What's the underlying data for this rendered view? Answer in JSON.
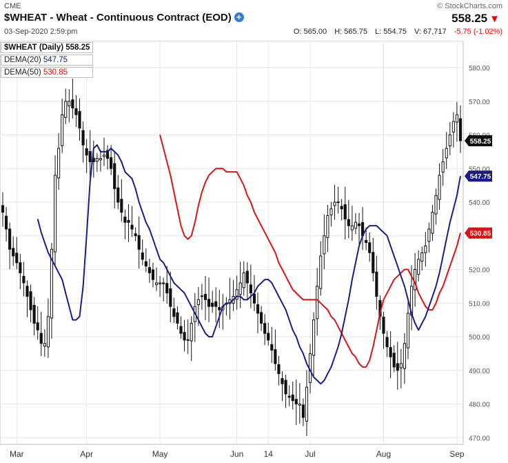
{
  "header": {
    "exchange": "CME",
    "title": "$WHEAT - Wheat - Continuous Contract (EOD)",
    "datetime": "03-Sep-2020 2:59:pm",
    "brand": "© StockCharts.com",
    "last_price": "558.25",
    "open": "O: 565.00",
    "high": "H: 565.75",
    "low": "L: 554.75",
    "volume": "V: 67,717",
    "change": "-5.75 (-1.02%)"
  },
  "legend": {
    "main": "$WHEAT (Daily)",
    "main_value": "558.25",
    "dema20": "DEMA(20)",
    "dema20_value": "547.75",
    "dema50": "DEMA(50)",
    "dema50_value": "530.85"
  },
  "colors": {
    "candle": "#111111",
    "dema20": "#1a1a8c",
    "dema50": "#dd1111",
    "grid": "#e6e6e6",
    "axis_text": "#555555",
    "down_arrow": "#e00000"
  },
  "chart_data": {
    "type": "candlestick",
    "x_tick_labels": [
      "Mar",
      "Apr",
      "May",
      "Jun",
      "14",
      "Jul",
      "Aug",
      "Sep"
    ],
    "x_tick_index": [
      4,
      24,
      45,
      67,
      76,
      88,
      109,
      130
    ],
    "y_ticks": [
      470,
      480,
      490,
      500,
      510,
      520,
      530,
      540,
      550,
      560,
      570,
      580
    ],
    "ylim": [
      468,
      588
    ],
    "price_label": "558.25",
    "dema20_label": "547.75",
    "dema50_label": "530.85",
    "close": [
      537,
      532,
      526,
      524,
      522,
      519,
      516,
      512,
      508,
      504,
      502,
      498,
      498,
      506,
      526,
      548,
      556,
      566,
      570,
      570,
      568,
      566,
      562,
      557,
      554,
      552,
      552,
      553,
      553,
      554,
      553,
      550,
      544,
      540,
      537,
      534,
      534,
      532,
      530,
      526,
      523,
      521,
      519,
      517,
      516,
      516,
      516,
      513,
      509,
      506,
      504,
      501,
      499,
      499,
      504,
      509,
      511,
      512,
      511,
      509,
      509,
      509,
      508,
      509,
      510,
      511,
      512,
      514,
      516,
      519,
      516,
      513,
      510,
      507,
      504,
      501,
      499,
      496,
      492,
      489,
      486,
      483,
      482,
      481,
      480,
      480,
      476,
      485,
      495,
      505,
      515,
      524,
      530,
      536,
      538,
      540,
      540,
      538,
      535,
      533,
      533,
      534,
      533,
      530,
      528,
      525,
      519,
      512,
      506,
      501,
      497,
      494,
      491,
      490,
      492,
      498,
      507,
      515,
      520,
      523,
      525,
      527,
      532,
      537,
      542,
      548,
      552,
      556,
      560,
      564,
      566,
      558.25
    ],
    "dema20": [
      535,
      531,
      528,
      525,
      523,
      521,
      519,
      517,
      513,
      509,
      505,
      505,
      506,
      515,
      530,
      546,
      556,
      557,
      555,
      555,
      555,
      556,
      555,
      554,
      552,
      549,
      548,
      547,
      544,
      540,
      537,
      534,
      532,
      529,
      526,
      523,
      522,
      520,
      518,
      516,
      515,
      514,
      513,
      511,
      509,
      507,
      505,
      503,
      501,
      500,
      500,
      503,
      506,
      509,
      510,
      510,
      511,
      512,
      512,
      511,
      511,
      512,
      513,
      515,
      516,
      517,
      517,
      516,
      514,
      512,
      510,
      508,
      505,
      502,
      500,
      497,
      495,
      492,
      490,
      488,
      487,
      486,
      487,
      489,
      491,
      494,
      497,
      501,
      506,
      511,
      517,
      522,
      527,
      530,
      532,
      533,
      533,
      533,
      532,
      531,
      530,
      527,
      524,
      521,
      518,
      515,
      511,
      507,
      504,
      502,
      504,
      506,
      509,
      512,
      515,
      519,
      524,
      529,
      534,
      538,
      542,
      547.75
    ],
    "dema50": [
      560,
      556,
      552,
      548,
      543,
      538,
      533,
      530,
      529,
      530,
      534,
      539,
      543,
      546,
      548,
      549,
      550,
      550,
      550,
      549,
      549,
      549,
      549,
      547,
      545,
      542,
      540,
      537,
      535,
      533,
      531,
      529,
      527,
      525,
      522,
      520,
      518,
      516,
      514,
      513,
      512,
      511,
      511,
      511,
      511,
      511,
      510,
      509,
      508,
      506,
      505,
      503,
      501,
      499,
      497,
      495,
      494,
      492,
      491,
      491,
      493,
      497,
      502,
      507,
      511,
      513,
      515,
      517,
      518,
      519,
      520,
      520,
      518,
      516,
      513,
      511,
      509,
      508,
      508,
      510,
      513,
      515,
      518,
      521,
      524,
      527,
      530.85
    ]
  }
}
